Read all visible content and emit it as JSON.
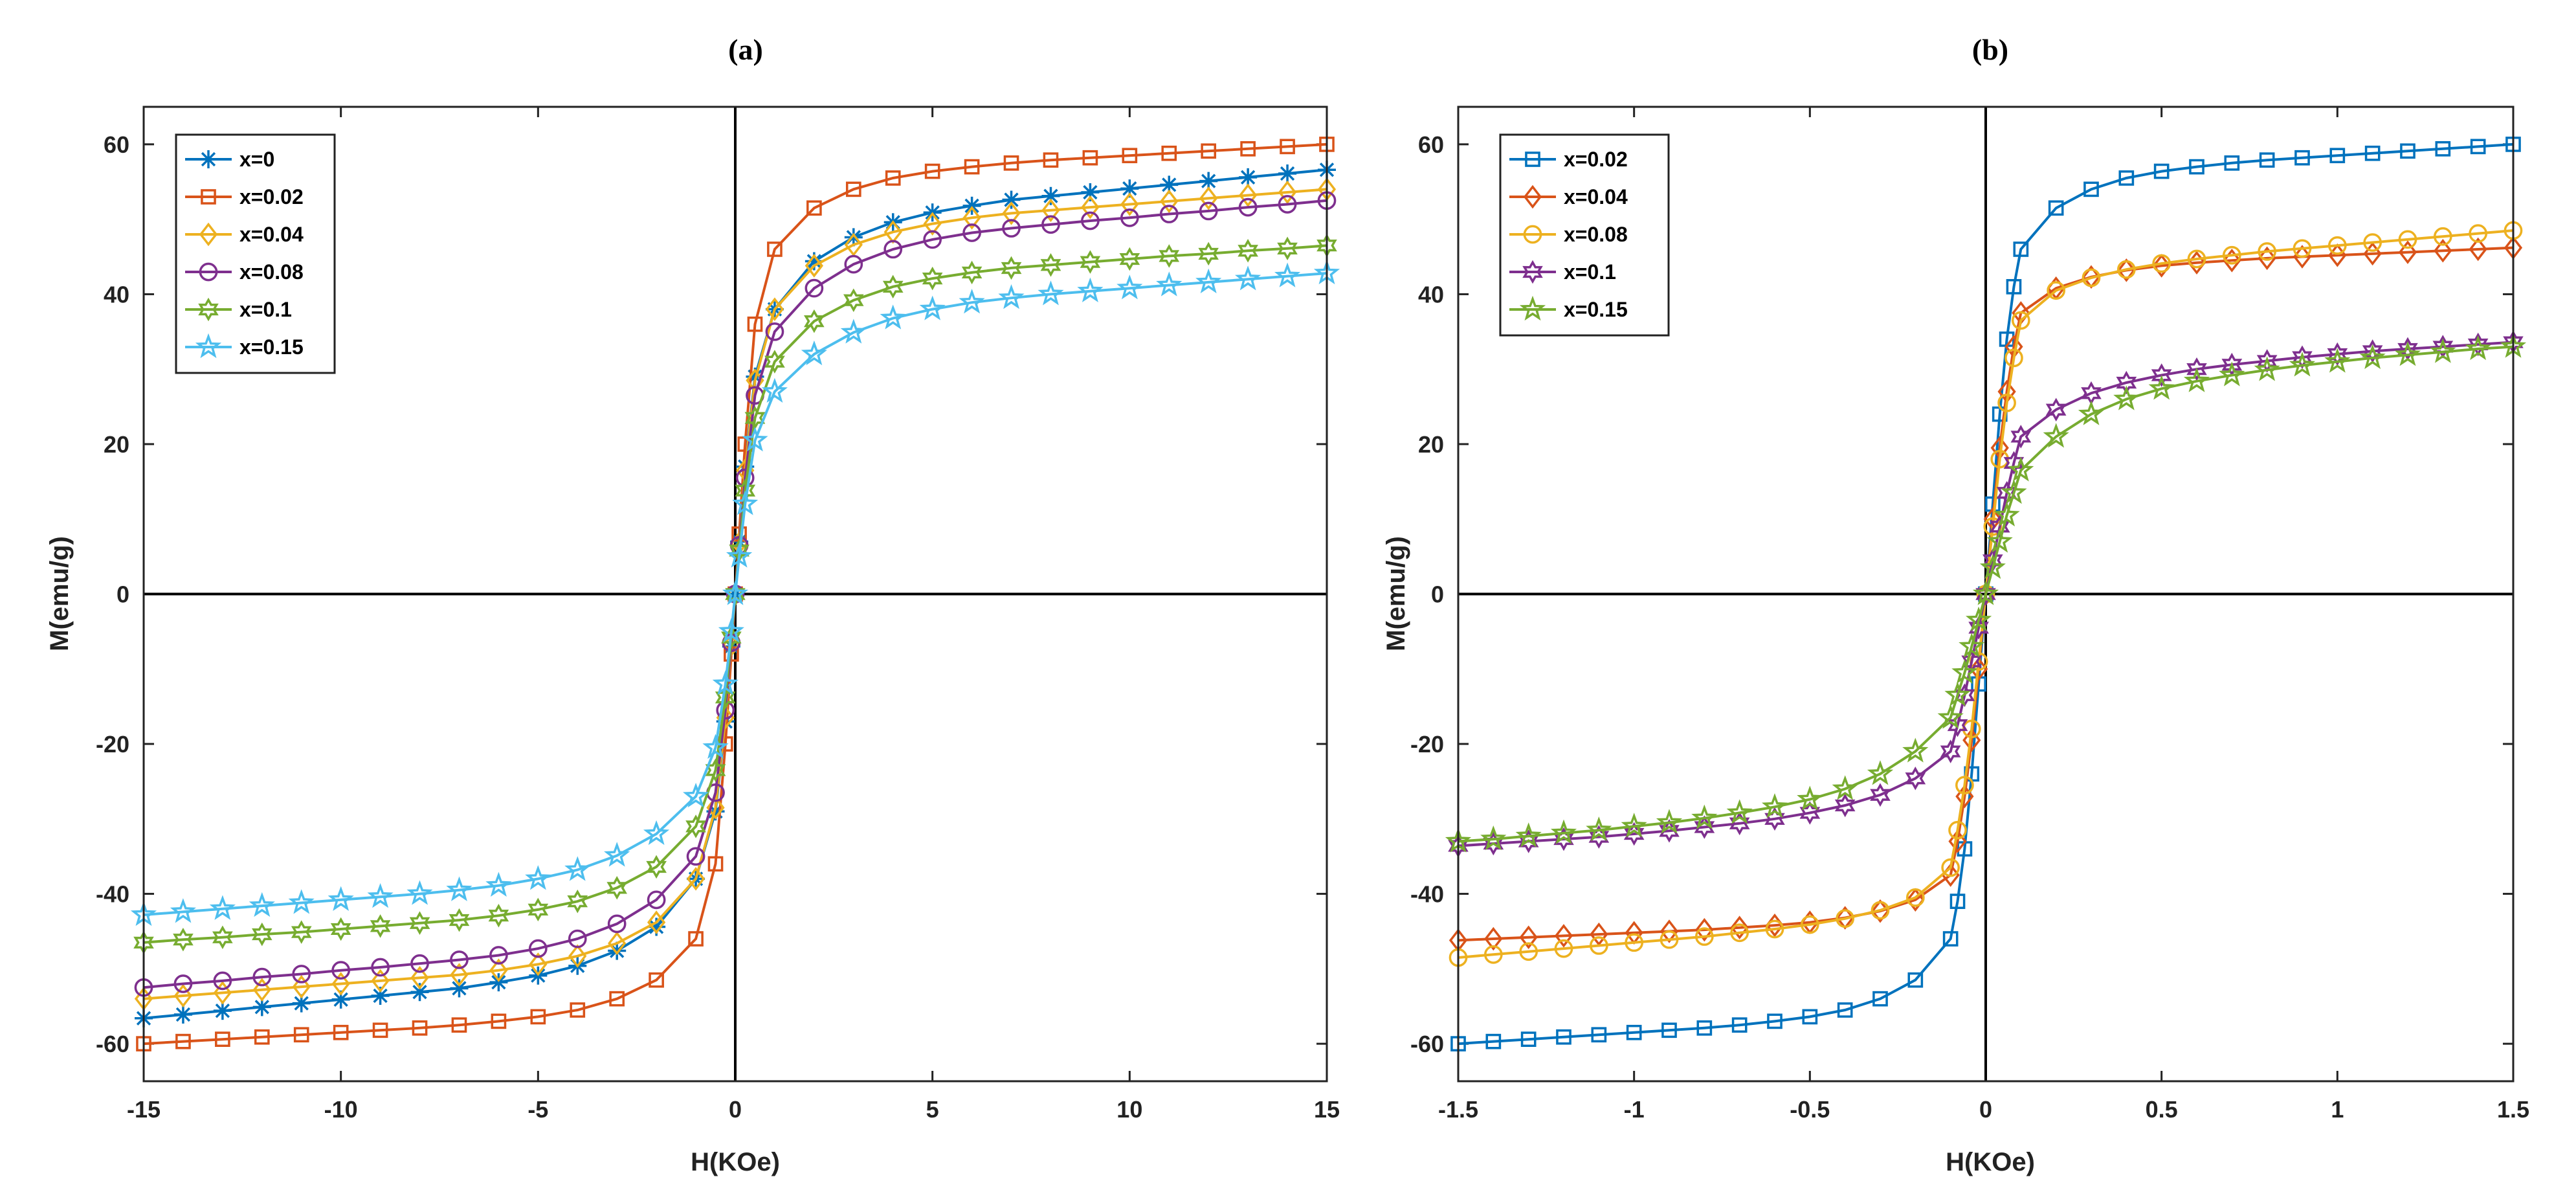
{
  "chart_data": [
    {
      "type": "line",
      "title": "(a)",
      "xlabel": "H(KOe)",
      "ylabel": "M(emu/g)",
      "xlim": [
        -15,
        15
      ],
      "ylim": [
        -65,
        65
      ],
      "xticks": [
        -15,
        -10,
        -5,
        0,
        5,
        10,
        15
      ],
      "yticks": [
        -60,
        -40,
        -20,
        0,
        20,
        40,
        60
      ],
      "legend_position": "top-left",
      "grid": false,
      "x": [
        -15,
        -14,
        -13,
        -12,
        -11,
        -10,
        -9,
        -8,
        -7,
        -6,
        -5,
        -4,
        -3,
        -2,
        -1,
        -0.5,
        -0.25,
        -0.1,
        0,
        0.1,
        0.25,
        0.5,
        1,
        2,
        3,
        4,
        5,
        6,
        7,
        8,
        9,
        10,
        11,
        12,
        13,
        14,
        15
      ],
      "series": [
        {
          "name": "x=0",
          "color": "#0072BD",
          "marker": "asterisk",
          "values": [
            -56.6,
            -56.1,
            -55.6,
            -55.1,
            -54.6,
            -54.1,
            -53.6,
            -53.1,
            -52.6,
            -51.8,
            -50.9,
            -49.6,
            -47.6,
            -44.4,
            -38.0,
            -29.0,
            -17.0,
            -7.0,
            0,
            7.0,
            17.0,
            29.0,
            38.0,
            44.4,
            47.6,
            49.6,
            50.9,
            51.8,
            52.6,
            53.1,
            53.6,
            54.1,
            54.6,
            55.1,
            55.6,
            56.1,
            56.6
          ]
        },
        {
          "name": "x=0.02",
          "color": "#D95319",
          "marker": "square",
          "values": [
            -60.0,
            -59.7,
            -59.4,
            -59.1,
            -58.8,
            -58.5,
            -58.2,
            -57.9,
            -57.5,
            -57.0,
            -56.4,
            -55.5,
            -54.0,
            -51.5,
            -46.0,
            -36.0,
            -20.0,
            -8.0,
            0,
            8.0,
            20.0,
            36.0,
            46.0,
            51.5,
            54.0,
            55.5,
            56.4,
            57.0,
            57.5,
            57.9,
            58.2,
            58.5,
            58.8,
            59.1,
            59.4,
            59.7,
            60.0
          ]
        },
        {
          "name": "x=0.04",
          "color": "#EDB120",
          "marker": "diamond",
          "values": [
            -54.0,
            -53.6,
            -53.2,
            -52.8,
            -52.4,
            -52.0,
            -51.6,
            -51.2,
            -50.8,
            -50.2,
            -49.4,
            -48.3,
            -46.6,
            -43.8,
            -38.0,
            -28.5,
            -16.5,
            -6.8,
            0,
            6.8,
            16.5,
            28.5,
            38.0,
            43.8,
            46.6,
            48.3,
            49.4,
            50.2,
            50.8,
            51.2,
            51.6,
            52.0,
            52.4,
            52.8,
            53.2,
            53.6,
            54.0
          ]
        },
        {
          "name": "x=0.08",
          "color": "#7E2F8E",
          "marker": "circle",
          "values": [
            -52.5,
            -52.0,
            -51.6,
            -51.1,
            -50.7,
            -50.2,
            -49.8,
            -49.3,
            -48.8,
            -48.2,
            -47.3,
            -46.0,
            -44.0,
            -40.8,
            -35.0,
            -26.5,
            -15.5,
            -6.5,
            0,
            6.5,
            15.5,
            26.5,
            35.0,
            40.8,
            44.0,
            46.0,
            47.3,
            48.2,
            48.8,
            49.3,
            49.8,
            50.2,
            50.7,
            51.1,
            51.6,
            52.0,
            52.5
          ]
        },
        {
          "name": "x=0.1",
          "color": "#77AC30",
          "marker": "hexagram",
          "values": [
            -46.5,
            -46.1,
            -45.8,
            -45.4,
            -45.1,
            -44.7,
            -44.3,
            -43.9,
            -43.5,
            -42.9,
            -42.1,
            -41.0,
            -39.2,
            -36.4,
            -31.0,
            -23.5,
            -13.8,
            -5.8,
            0,
            5.8,
            13.8,
            23.5,
            31.0,
            36.4,
            39.2,
            41.0,
            42.1,
            42.9,
            43.5,
            43.9,
            44.3,
            44.7,
            45.1,
            45.4,
            45.8,
            46.1,
            46.5
          ]
        },
        {
          "name": "x=0.15",
          "color": "#4DBEEE",
          "marker": "pentagram",
          "values": [
            -42.8,
            -42.4,
            -42.0,
            -41.6,
            -41.2,
            -40.8,
            -40.4,
            -40.0,
            -39.5,
            -38.9,
            -38.0,
            -36.8,
            -34.9,
            -32.0,
            -27.0,
            -20.5,
            -12.0,
            -5.0,
            0,
            5.0,
            12.0,
            20.5,
            27.0,
            32.0,
            34.9,
            36.8,
            38.0,
            38.9,
            39.5,
            40.0,
            40.4,
            40.8,
            41.2,
            41.6,
            42.0,
            42.4,
            42.8
          ]
        }
      ]
    },
    {
      "type": "line",
      "title": "(b)",
      "xlabel": "H(KOe)",
      "ylabel": "M(emu/g)",
      "xlim": [
        -1.5,
        1.5
      ],
      "ylim": [
        -65,
        65
      ],
      "xticks": [
        -1.5,
        -1,
        -0.5,
        0,
        0.5,
        1,
        1.5
      ],
      "yticks": [
        -60,
        -40,
        -20,
        0,
        20,
        40,
        60
      ],
      "legend_position": "top-left",
      "grid": false,
      "x": [
        -1.5,
        -1.4,
        -1.3,
        -1.2,
        -1.1,
        -1.0,
        -0.9,
        -0.8,
        -0.7,
        -0.6,
        -0.5,
        -0.4,
        -0.3,
        -0.2,
        -0.1,
        -0.08,
        -0.06,
        -0.04,
        -0.02,
        0,
        0.02,
        0.04,
        0.06,
        0.08,
        0.1,
        0.2,
        0.3,
        0.4,
        0.5,
        0.6,
        0.7,
        0.8,
        0.9,
        1.0,
        1.1,
        1.2,
        1.3,
        1.4,
        1.5
      ],
      "series": [
        {
          "name": "x=0.02",
          "color": "#0072BD",
          "marker": "square",
          "values": [
            -60.0,
            -59.7,
            -59.4,
            -59.1,
            -58.8,
            -58.5,
            -58.2,
            -57.9,
            -57.5,
            -57.0,
            -56.4,
            -55.5,
            -54.0,
            -51.5,
            -46.0,
            -41.0,
            -34.0,
            -24.0,
            -12.0,
            0,
            12.0,
            24.0,
            34.0,
            41.0,
            46.0,
            51.5,
            54.0,
            55.5,
            56.4,
            57.0,
            57.5,
            57.9,
            58.2,
            58.5,
            58.8,
            59.1,
            59.4,
            59.7,
            60.0
          ]
        },
        {
          "name": "x=0.04",
          "color": "#D95319",
          "marker": "diamond",
          "values": [
            -46.2,
            -46.0,
            -45.8,
            -45.6,
            -45.4,
            -45.2,
            -45.0,
            -44.8,
            -44.5,
            -44.2,
            -43.8,
            -43.2,
            -42.3,
            -40.8,
            -37.5,
            -33.0,
            -27.0,
            -19.5,
            -10.0,
            0,
            10.0,
            19.5,
            27.0,
            33.0,
            37.5,
            40.8,
            42.3,
            43.2,
            43.8,
            44.2,
            44.5,
            44.8,
            45.0,
            45.2,
            45.4,
            45.6,
            45.8,
            46.0,
            46.2
          ]
        },
        {
          "name": "x=0.08",
          "color": "#EDB120",
          "marker": "circle",
          "values": [
            -48.5,
            -48.1,
            -47.7,
            -47.3,
            -46.9,
            -46.5,
            -46.1,
            -45.7,
            -45.2,
            -44.7,
            -44.1,
            -43.3,
            -42.2,
            -40.5,
            -36.5,
            -31.5,
            -25.5,
            -18.0,
            -9.0,
            0,
            9.0,
            18.0,
            25.5,
            31.5,
            36.5,
            40.5,
            42.2,
            43.3,
            44.1,
            44.7,
            45.2,
            45.7,
            46.1,
            46.5,
            46.9,
            47.3,
            47.7,
            48.1,
            48.5
          ]
        },
        {
          "name": "x=0.1",
          "color": "#7E2F8E",
          "marker": "hexagram",
          "values": [
            -33.6,
            -33.3,
            -33.0,
            -32.7,
            -32.4,
            -32.0,
            -31.6,
            -31.1,
            -30.6,
            -30.0,
            -29.2,
            -28.2,
            -26.8,
            -24.6,
            -21.0,
            -17.5,
            -13.5,
            -9.0,
            -4.5,
            0,
            4.5,
            9.0,
            13.5,
            17.5,
            21.0,
            24.6,
            26.8,
            28.2,
            29.2,
            30.0,
            30.6,
            31.1,
            31.6,
            32.0,
            32.4,
            32.7,
            33.0,
            33.3,
            33.6
          ]
        },
        {
          "name": "x=0.15",
          "color": "#77AC30",
          "marker": "pentagram",
          "values": [
            -33.0,
            -32.7,
            -32.3,
            -31.9,
            -31.5,
            -31.0,
            -30.5,
            -29.9,
            -29.2,
            -28.4,
            -27.4,
            -26.0,
            -24.0,
            -21.0,
            -16.5,
            -13.5,
            -10.5,
            -7.0,
            -3.5,
            0,
            3.5,
            7.0,
            10.5,
            13.5,
            16.5,
            21.0,
            24.0,
            26.0,
            27.4,
            28.4,
            29.2,
            29.9,
            30.5,
            31.0,
            31.5,
            31.9,
            32.3,
            32.7,
            33.0
          ]
        }
      ]
    }
  ]
}
